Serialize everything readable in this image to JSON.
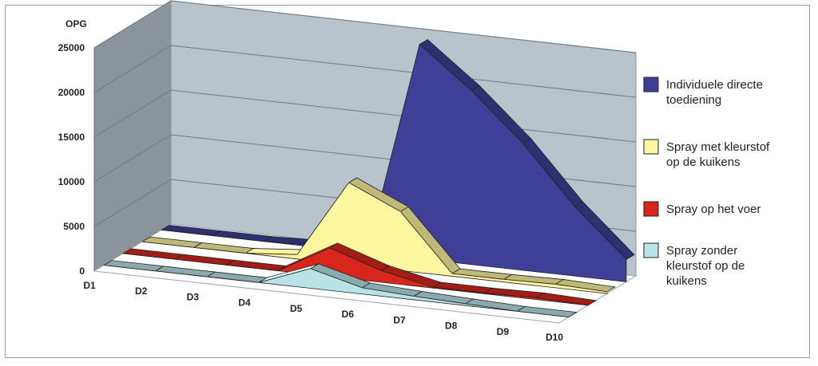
{
  "chart_data": {
    "type": "area",
    "ylabel": "OPG",
    "ylim": [
      0,
      25000
    ],
    "yticks": [
      0,
      5000,
      10000,
      15000,
      20000,
      25000
    ],
    "categories": [
      "D1",
      "D2",
      "D3",
      "D4",
      "D5",
      "D6",
      "D7",
      "D8",
      "D9",
      "D10"
    ],
    "legend_position": "right",
    "series": [
      {
        "name": "Individuele directe toediening",
        "name_lines": [
          "Individuele directe",
          "toediening"
        ],
        "color": "#3f3f98",
        "values": [
          0,
          0,
          0,
          200,
          500,
          24000,
          19500,
          14200,
          7800,
          2500
        ]
      },
      {
        "name": "Spray met kleurstof op de kuikens",
        "name_lines": [
          "Spray met kleurstof",
          "op de kuikens"
        ],
        "color": "#fff6a0",
        "values": [
          0,
          0,
          0,
          500,
          9200,
          6600,
          300,
          300,
          400,
          200
        ]
      },
      {
        "name": "Spray op het voer",
        "name_lines": [
          "Spray op het voer"
        ],
        "color": "#d9261c",
        "values": [
          0,
          0,
          0,
          0,
          3200,
          1300,
          100,
          100,
          200,
          0
        ]
      },
      {
        "name": "Spray zonder kleurstof op de kuikens",
        "name_lines": [
          "Spray zonder",
          "kleurstof op de",
          "kuikens"
        ],
        "color": "#b9e3e6",
        "values": [
          0,
          0,
          0,
          0,
          2200,
          700,
          400,
          200,
          0,
          0
        ]
      }
    ]
  }
}
